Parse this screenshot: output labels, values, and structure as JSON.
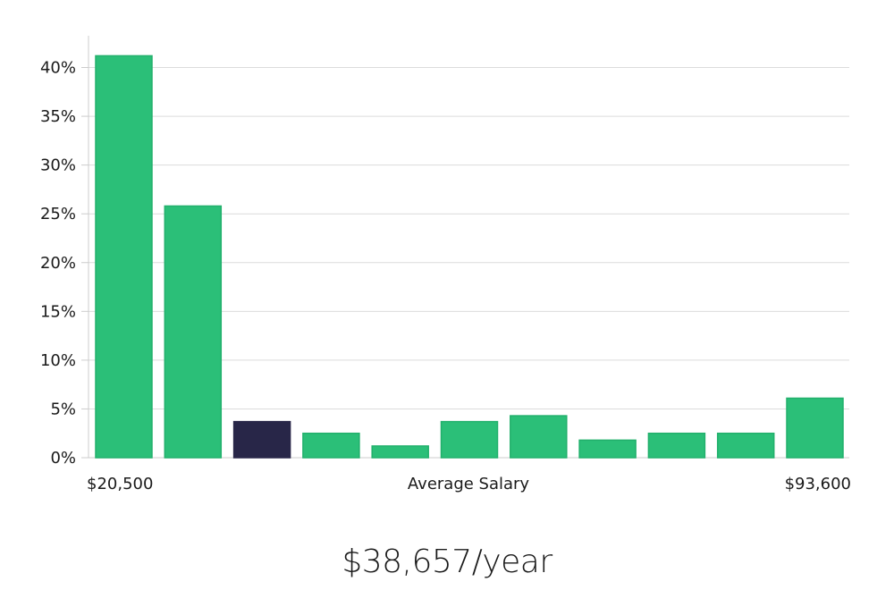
{
  "chart_data": {
    "type": "bar",
    "categories": [
      "bin1",
      "bin2",
      "bin3",
      "bin4",
      "bin5",
      "bin6",
      "bin7",
      "bin8",
      "bin9",
      "bin10",
      "bin11"
    ],
    "values": [
      41.2,
      25.8,
      3.7,
      2.5,
      1.2,
      3.7,
      4.3,
      1.8,
      2.5,
      2.5,
      6.1
    ],
    "highlight_index": 2,
    "ylim": [
      0,
      43
    ],
    "y_ticks": [
      0,
      5,
      10,
      15,
      20,
      25,
      30,
      35,
      40
    ],
    "y_tick_labels": [
      "0%",
      "5%",
      "10%",
      "15%",
      "20%",
      "25%",
      "30%",
      "35%",
      "40%"
    ],
    "x_min_label": "$20,500",
    "x_center_label": "Average Salary",
    "x_max_label": "$93,600",
    "grid": true,
    "colors": {
      "bar": "#2bbf78",
      "bar_edge": "#22b06c",
      "highlight": "#282648",
      "grid": "#dcdcdc",
      "axis": "#cccccc"
    }
  },
  "summary_text": "$38,657/year"
}
